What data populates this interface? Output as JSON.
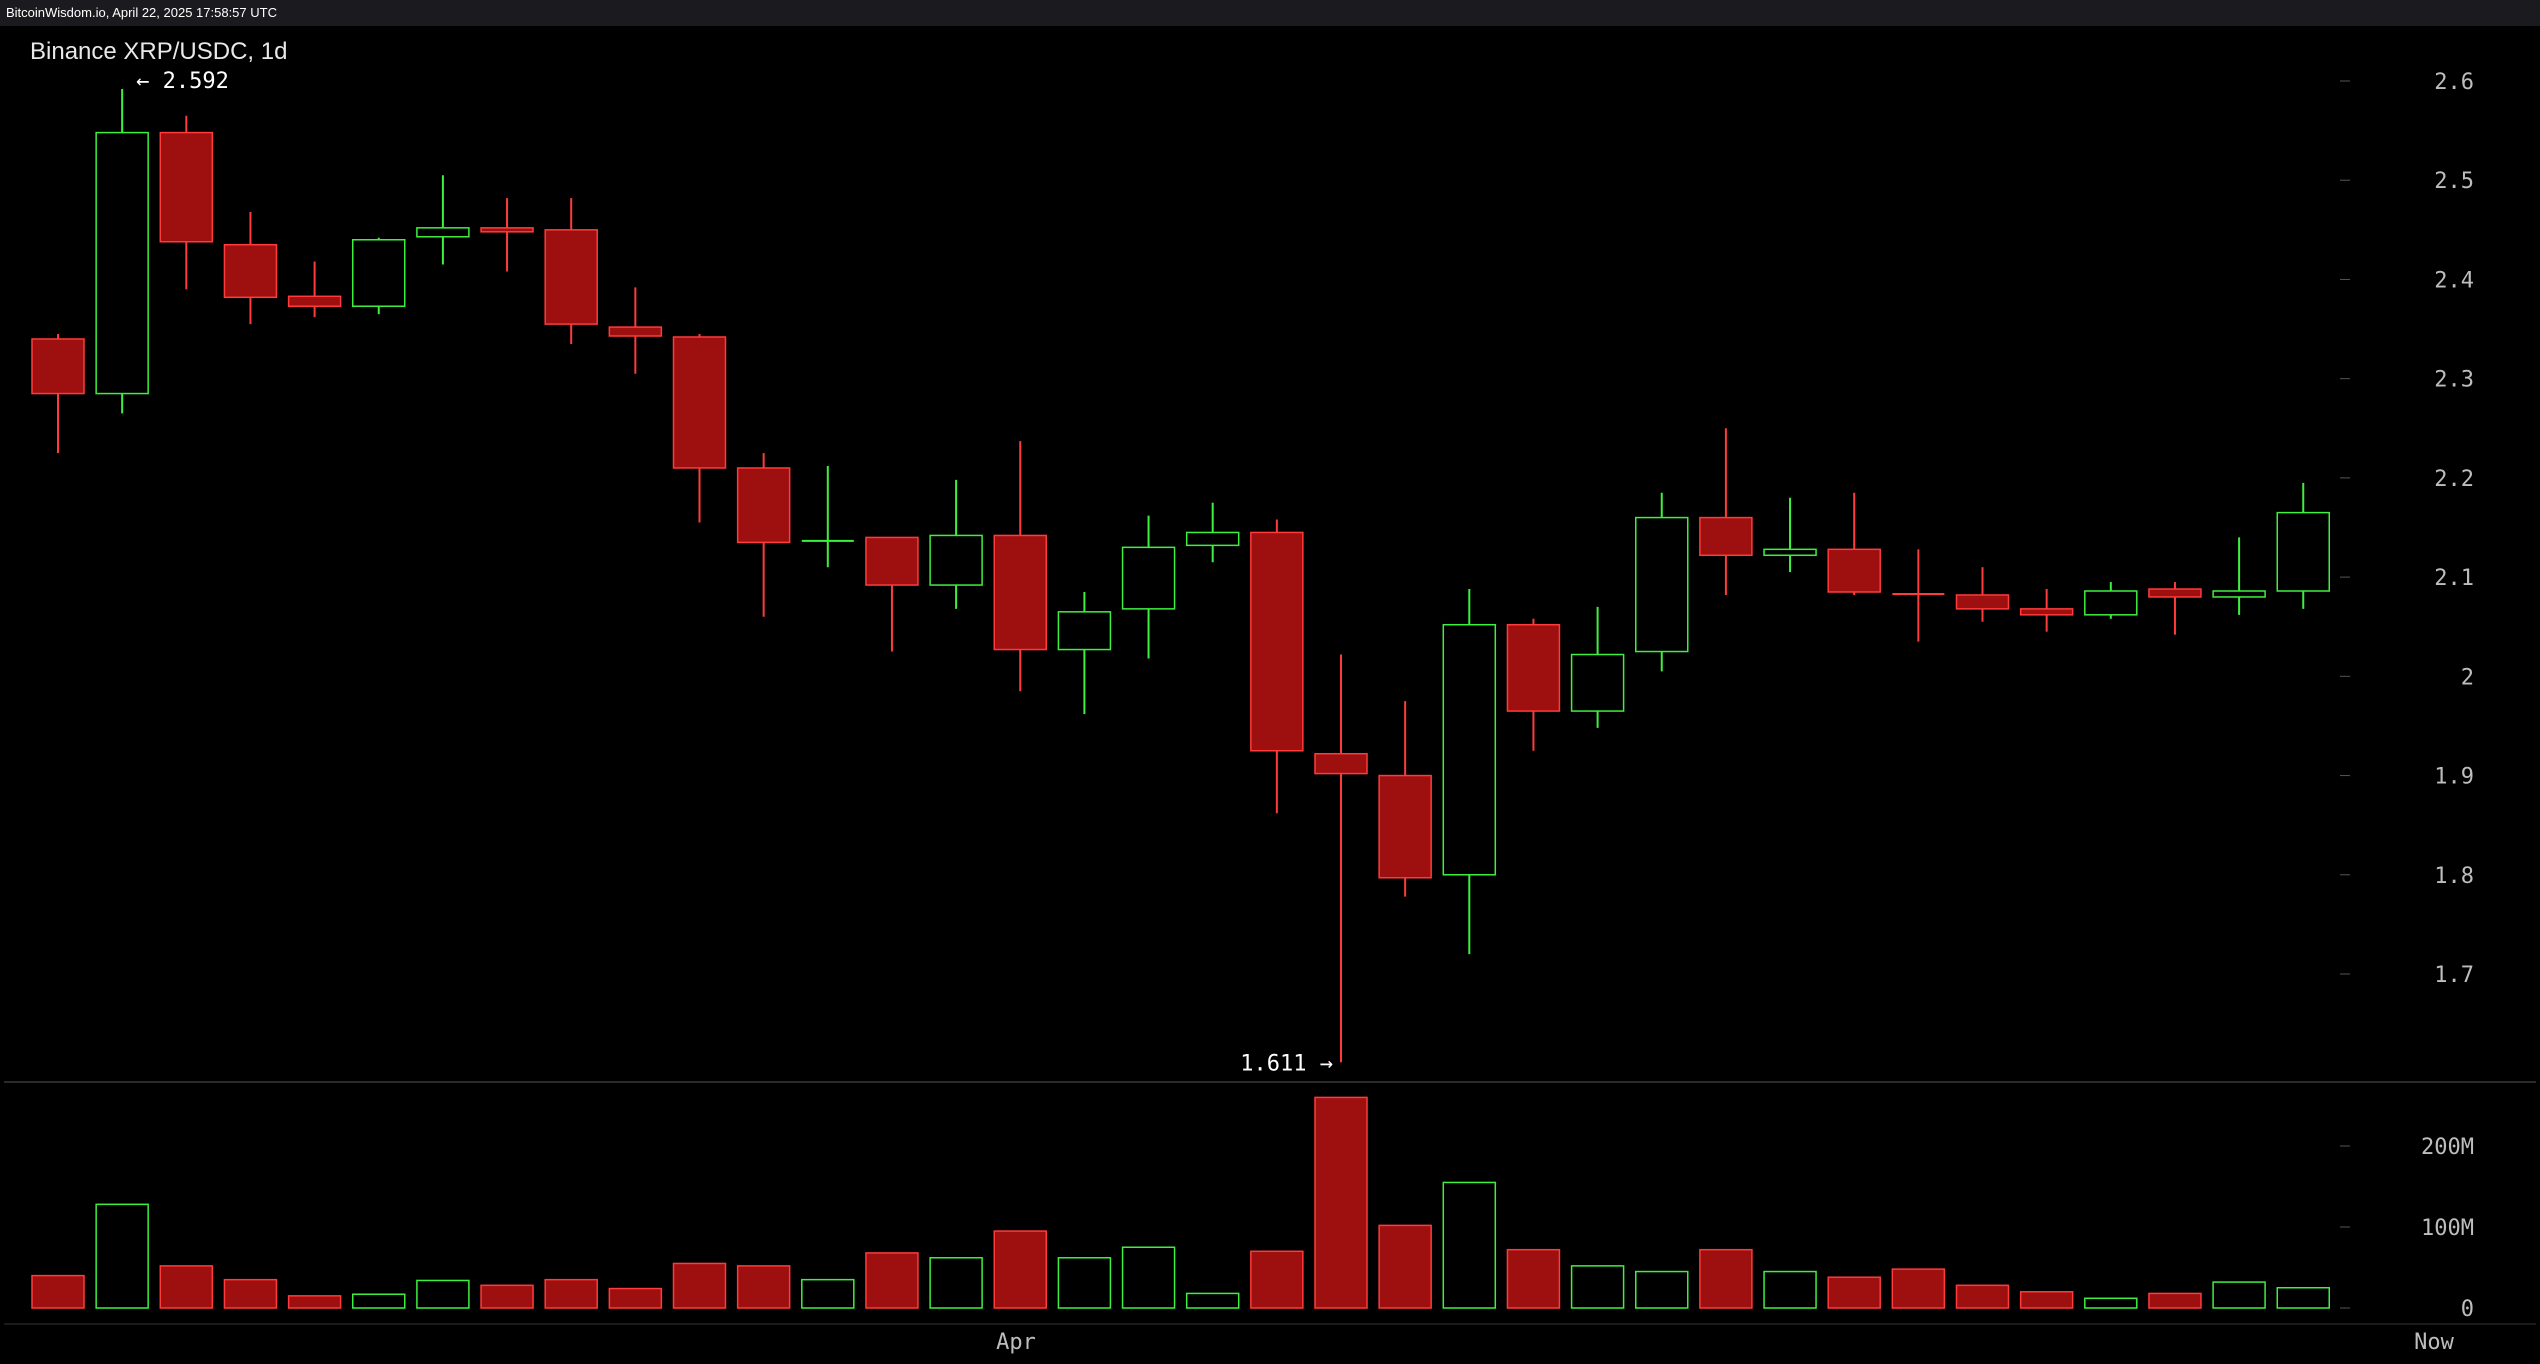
{
  "source_bar": "BitcoinWisdom.io, April 22, 2025 17:58:57 UTC",
  "chart_title": "Binance XRP/USDC, 1d",
  "colors": {
    "up": "#3ef03e",
    "down": "#9e0f0f",
    "down_border": "#ff3b3b",
    "axis_text": "#bdbdbd",
    "separator": "#555555"
  },
  "chart_data": {
    "type": "candlestick",
    "title": "Binance XRP/USDC, 1d",
    "x_ticks": [
      "Apr",
      "Now"
    ],
    "y_ticks": [
      1.7,
      1.8,
      1.9,
      2,
      2.1,
      2.2,
      2.3,
      2.4,
      2.5,
      2.6
    ],
    "y_tick_labels": [
      "1.7",
      "1.8",
      "1.9",
      "2",
      "2.1",
      "2.2",
      "2.3",
      "2.4",
      "2.5",
      "2.6"
    ],
    "ylim": [
      1.61,
      2.65
    ],
    "volume_ticks": [
      "0",
      "100M",
      "200M"
    ],
    "volume_tick_values": [
      0,
      100,
      200
    ],
    "volume_ylim": [
      0,
      260
    ],
    "annotations": {
      "high_label": "← 2.592",
      "low_label": "1.611 →",
      "high_value": 2.592,
      "low_value": 1.611
    },
    "candles": [
      {
        "o": 2.34,
        "h": 2.345,
        "l": 2.225,
        "c": 2.285,
        "v": 40
      },
      {
        "o": 2.285,
        "h": 2.592,
        "l": 2.265,
        "c": 2.548,
        "v": 128
      },
      {
        "o": 2.548,
        "h": 2.565,
        "l": 2.39,
        "c": 2.438,
        "v": 52
      },
      {
        "o": 2.435,
        "h": 2.468,
        "l": 2.355,
        "c": 2.382,
        "v": 35
      },
      {
        "o": 2.383,
        "h": 2.418,
        "l": 2.362,
        "c": 2.373,
        "v": 15
      },
      {
        "o": 2.373,
        "h": 2.442,
        "l": 2.365,
        "c": 2.44,
        "v": 17
      },
      {
        "o": 2.443,
        "h": 2.505,
        "l": 2.415,
        "c": 2.452,
        "v": 34
      },
      {
        "o": 2.452,
        "h": 2.482,
        "l": 2.408,
        "c": 2.448,
        "v": 28
      },
      {
        "o": 2.45,
        "h": 2.482,
        "l": 2.335,
        "c": 2.355,
        "v": 35
      },
      {
        "o": 2.352,
        "h": 2.392,
        "l": 2.305,
        "c": 2.343,
        "v": 24
      },
      {
        "o": 2.342,
        "h": 2.345,
        "l": 2.155,
        "c": 2.21,
        "v": 55
      },
      {
        "o": 2.21,
        "h": 2.225,
        "l": 2.06,
        "c": 2.135,
        "v": 52
      },
      {
        "o": 2.135,
        "h": 2.212,
        "l": 2.11,
        "c": 2.138,
        "v": 35
      },
      {
        "o": 2.14,
        "h": 2.14,
        "l": 2.025,
        "c": 2.092,
        "v": 68
      },
      {
        "o": 2.092,
        "h": 2.198,
        "l": 2.068,
        "c": 2.142,
        "v": 62
      },
      {
        "o": 2.142,
        "h": 2.237,
        "l": 1.985,
        "c": 2.027,
        "v": 95
      },
      {
        "o": 2.027,
        "h": 2.085,
        "l": 1.962,
        "c": 2.065,
        "v": 62
      },
      {
        "o": 2.068,
        "h": 2.162,
        "l": 2.018,
        "c": 2.13,
        "v": 75
      },
      {
        "o": 2.132,
        "h": 2.175,
        "l": 2.115,
        "c": 2.145,
        "v": 18
      },
      {
        "o": 2.145,
        "h": 2.158,
        "l": 1.862,
        "c": 1.925,
        "v": 70
      },
      {
        "o": 1.922,
        "h": 2.022,
        "l": 1.611,
        "c": 1.902,
        "v": 260
      },
      {
        "o": 1.9,
        "h": 1.975,
        "l": 1.778,
        "c": 1.797,
        "v": 102
      },
      {
        "o": 1.8,
        "h": 2.088,
        "l": 1.72,
        "c": 2.052,
        "v": 155
      },
      {
        "o": 2.052,
        "h": 2.058,
        "l": 1.925,
        "c": 1.965,
        "v": 72
      },
      {
        "o": 1.965,
        "h": 2.07,
        "l": 1.948,
        "c": 2.022,
        "v": 52
      },
      {
        "o": 2.025,
        "h": 2.185,
        "l": 2.005,
        "c": 2.16,
        "v": 45
      },
      {
        "o": 2.16,
        "h": 2.25,
        "l": 2.082,
        "c": 2.122,
        "v": 72
      },
      {
        "o": 2.122,
        "h": 2.18,
        "l": 2.105,
        "c": 2.128,
        "v": 45
      },
      {
        "o": 2.128,
        "h": 2.185,
        "l": 2.082,
        "c": 2.085,
        "v": 38
      },
      {
        "o": 2.084,
        "h": 2.128,
        "l": 2.035,
        "c": 2.082,
        "v": 48
      },
      {
        "o": 2.082,
        "h": 2.11,
        "l": 2.055,
        "c": 2.068,
        "v": 28
      },
      {
        "o": 2.068,
        "h": 2.088,
        "l": 2.045,
        "c": 2.062,
        "v": 20
      },
      {
        "o": 2.062,
        "h": 2.095,
        "l": 2.058,
        "c": 2.086,
        "v": 12
      },
      {
        "o": 2.088,
        "h": 2.095,
        "l": 2.042,
        "c": 2.08,
        "v": 18
      },
      {
        "o": 2.08,
        "h": 2.14,
        "l": 2.062,
        "c": 2.086,
        "v": 32
      },
      {
        "o": 2.086,
        "h": 2.195,
        "l": 2.068,
        "c": 2.165,
        "v": 25
      }
    ]
  }
}
